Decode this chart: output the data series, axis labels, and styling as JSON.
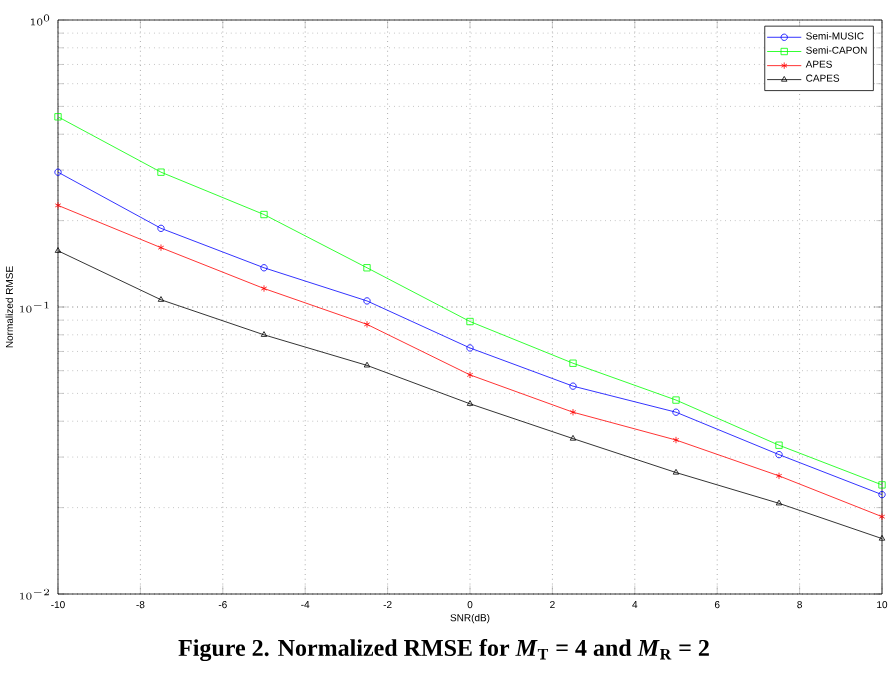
{
  "chart_data": {
    "type": "line",
    "xlabel": "SNR(dB)",
    "ylabel": "Normalized RMSE",
    "annotations": [
      "Figure 2. Normalized RMSE for *M*$_{T}$ = 4 and *M*$_{R}$ = 2"
    ],
    "x": [
      -10,
      -7.5,
      -5,
      -2.5,
      0,
      2.5,
      5,
      7.5,
      10
    ],
    "series": [
      {
        "name": "Semi-MUSIC",
        "color": "#0000ff",
        "marker": "circle",
        "values": [
          0.295,
          0.188,
          0.137,
          0.105,
          0.072,
          0.053,
          0.043,
          0.0306,
          0.0222
        ]
      },
      {
        "name": "Semi-CAPON",
        "color": "#00ff00",
        "marker": "square",
        "values": [
          0.46,
          0.295,
          0.21,
          0.137,
          0.089,
          0.0637,
          0.0474,
          0.033,
          0.024
        ]
      },
      {
        "name": "APES",
        "color": "#ff0000",
        "marker": "cross",
        "values": [
          0.226,
          0.161,
          0.116,
          0.087,
          0.058,
          0.043,
          0.0344,
          0.0258,
          0.0186
        ]
      },
      {
        "name": "CAPES",
        "color": "#000000",
        "marker": "triangle",
        "values": [
          0.157,
          0.106,
          0.08,
          0.0626,
          0.046,
          0.0348,
          0.0265,
          0.0207,
          0.0156
        ]
      }
    ],
    "xlim": [
      -10,
      10
    ],
    "ylim": [
      0.01,
      1
    ],
    "xticks": [
      -10,
      -8,
      -6,
      -4,
      -2,
      0,
      2,
      4,
      6,
      8,
      10
    ],
    "yticks": [
      {
        "value": 0.01,
        "label": "10^{-2}"
      },
      {
        "value": 0.1,
        "label": "10^{-1}"
      },
      {
        "value": 1,
        "label": "10^{0}"
      }
    ],
    "log": "y",
    "grid": true,
    "legend": "top right",
    "line_style": "solid"
  }
}
